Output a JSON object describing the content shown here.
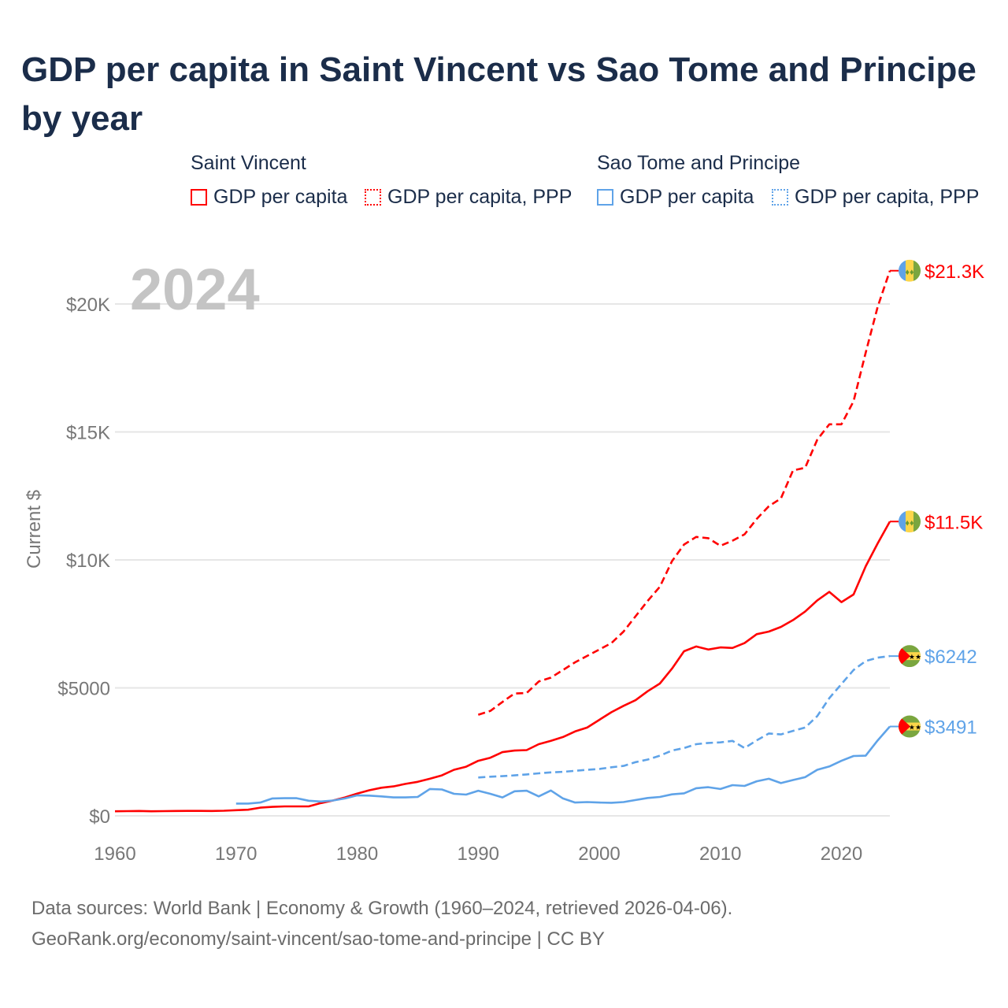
{
  "title": "GDP per capita in Saint Vincent vs Sao Tome and Principe by year",
  "legend": {
    "groups": [
      {
        "name": "Saint Vincent",
        "items": [
          "GDP per capita",
          "GDP per capita, PPP"
        ]
      },
      {
        "name": "Sao Tome and Principe",
        "items": [
          "GDP per capita",
          "GDP per capita, PPP"
        ]
      }
    ]
  },
  "footer": {
    "line1": "Data sources: World Bank | Economy & Growth (1960–2024, retrieved 2026-04-06).",
    "line2": "GeoRank.org/economy/saint-vincent/sao-tome-and-principe | CC BY"
  },
  "chart_data": {
    "type": "line",
    "title": "GDP per capita in Saint Vincent vs Sao Tome and Principe by year",
    "ylabel": "Current $",
    "xlabel": "",
    "year_label": "2024",
    "xlim": [
      1960,
      2024
    ],
    "ylim": [
      0,
      22000
    ],
    "x_ticks": [
      1960,
      1970,
      1980,
      1990,
      2000,
      2010,
      2020
    ],
    "y_ticks": [
      {
        "v": 0,
        "label": "$0"
      },
      {
        "v": 5000,
        "label": "$5000"
      },
      {
        "v": 10000,
        "label": "$10K"
      },
      {
        "v": 15000,
        "label": "$15K"
      },
      {
        "v": 20000,
        "label": "$20K"
      }
    ],
    "grid": true,
    "series": [
      {
        "name": "Saint Vincent GDP per capita",
        "color": "#ff0000",
        "dashed": false,
        "flag": "saint-vincent",
        "end_label": "$11.5K",
        "start": 1960,
        "values": [
          180,
          185,
          190,
          180,
          185,
          190,
          195,
          195,
          190,
          200,
          220,
          240,
          320,
          350,
          370,
          370,
          370,
          500,
          600,
          720,
          870,
          1000,
          1100,
          1150,
          1250,
          1330,
          1450,
          1580,
          1800,
          1920,
          2150,
          2270,
          2490,
          2550,
          2570,
          2800,
          2930,
          3080,
          3300,
          3450,
          3750,
          4050,
          4300,
          4520,
          4870,
          5170,
          5750,
          6430,
          6620,
          6500,
          6580,
          6560,
          6750,
          7100,
          7200,
          7380,
          7650,
          7980,
          8420,
          8750,
          8350,
          8650,
          9750,
          10650,
          11500
        ]
      },
      {
        "name": "Saint Vincent GDP per capita, PPP",
        "color": "#ff0000",
        "dashed": true,
        "flag": "saint-vincent",
        "end_label": "$21.3K",
        "start": 1990,
        "values": [
          3950,
          4100,
          4450,
          4780,
          4800,
          5250,
          5400,
          5700,
          6000,
          6250,
          6500,
          6750,
          7200,
          7800,
          8400,
          8950,
          9950,
          10600,
          10900,
          10850,
          10550,
          10750,
          11000,
          11600,
          12100,
          12400,
          13500,
          13600,
          14700,
          15300,
          15300,
          16200,
          18100,
          19900,
          21300
        ]
      },
      {
        "name": "Sao Tome and Principe GDP per capita",
        "color": "#5fa3e8",
        "dashed": false,
        "flag": "sao-tome",
        "end_label": "$3491",
        "start": 1970,
        "values": [
          480,
          480,
          520,
          680,
          690,
          690,
          590,
          560,
          600,
          680,
          800,
          790,
          760,
          720,
          720,
          740,
          1050,
          1030,
          860,
          830,
          980,
          860,
          720,
          960,
          980,
          760,
          990,
          680,
          520,
          540,
          520,
          510,
          540,
          620,
          700,
          740,
          840,
          880,
          1080,
          1120,
          1050,
          1200,
          1170,
          1350,
          1450,
          1280,
          1400,
          1510,
          1800,
          1930,
          2150,
          2340,
          2350,
          2950,
          3491
        ]
      },
      {
        "name": "Sao Tome and Principe GDP per capita, PPP",
        "color": "#5fa3e8",
        "dashed": true,
        "flag": "sao-tome",
        "end_label": "$6242",
        "start": 1990,
        "values": [
          1500,
          1530,
          1550,
          1580,
          1620,
          1660,
          1700,
          1720,
          1760,
          1800,
          1830,
          1900,
          1950,
          2100,
          2200,
          2350,
          2550,
          2650,
          2800,
          2850,
          2870,
          2930,
          2650,
          2950,
          3220,
          3180,
          3320,
          3450,
          3900,
          4600,
          5150,
          5700,
          6050,
          6180,
          6242
        ]
      }
    ]
  }
}
